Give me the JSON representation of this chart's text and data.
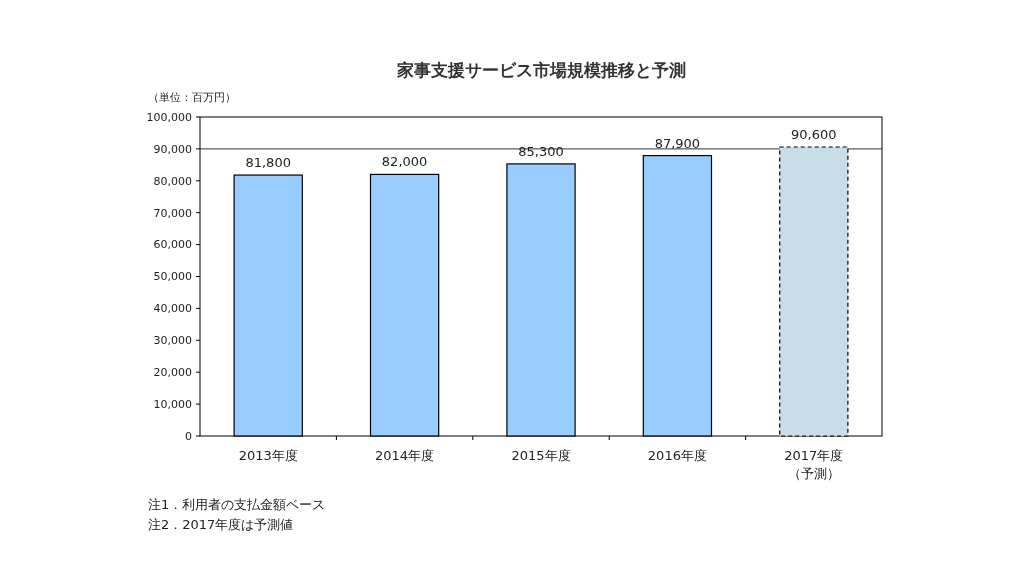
{
  "chart_data": {
    "type": "bar",
    "title": "家事支援サービス市場規模推移と予測",
    "ylabel": "（単位：百万円）",
    "categories": [
      "2013年度",
      "2014年度",
      "2015年度",
      "2016年度",
      "2017年度（予測）"
    ],
    "series": [
      {
        "color": "#99ccff",
        "values": [
          81800,
          82000,
          85300,
          87900,
          null
        ],
        "value_labels": [
          "81,800",
          "82,000",
          "85,300",
          "87,900",
          null
        ],
        "line_style": "solid"
      },
      {
        "color": "#c8dde8",
        "values": [
          null,
          null,
          null,
          null,
          90600
        ],
        "value_labels": [
          null,
          null,
          null,
          null,
          "90,600"
        ],
        "line_style": "dashed"
      }
    ],
    "ylim": [
      0,
      100000
    ],
    "yticks": [
      {
        "value": 0,
        "label": "0"
      },
      {
        "value": 10000,
        "label": "10,000"
      },
      {
        "value": 20000,
        "label": "20,000"
      },
      {
        "value": 30000,
        "label": "30,000"
      },
      {
        "value": 40000,
        "label": "40,000"
      },
      {
        "value": 50000,
        "label": "50,000"
      },
      {
        "value": 60000,
        "label": "60,000"
      },
      {
        "value": 70000,
        "label": "70,000"
      },
      {
        "value": 80000,
        "label": "80,000"
      },
      {
        "value": 90000,
        "label": "90,000"
      },
      {
        "value": 100000,
        "label": "100,000"
      }
    ],
    "ref_lines": [
      {
        "axis": "y",
        "value": 90000,
        "color": "#000000"
      }
    ],
    "annotations": [
      "注1．利用者の支払金額ベース",
      "注2．2017年度は予測値"
    ]
  }
}
